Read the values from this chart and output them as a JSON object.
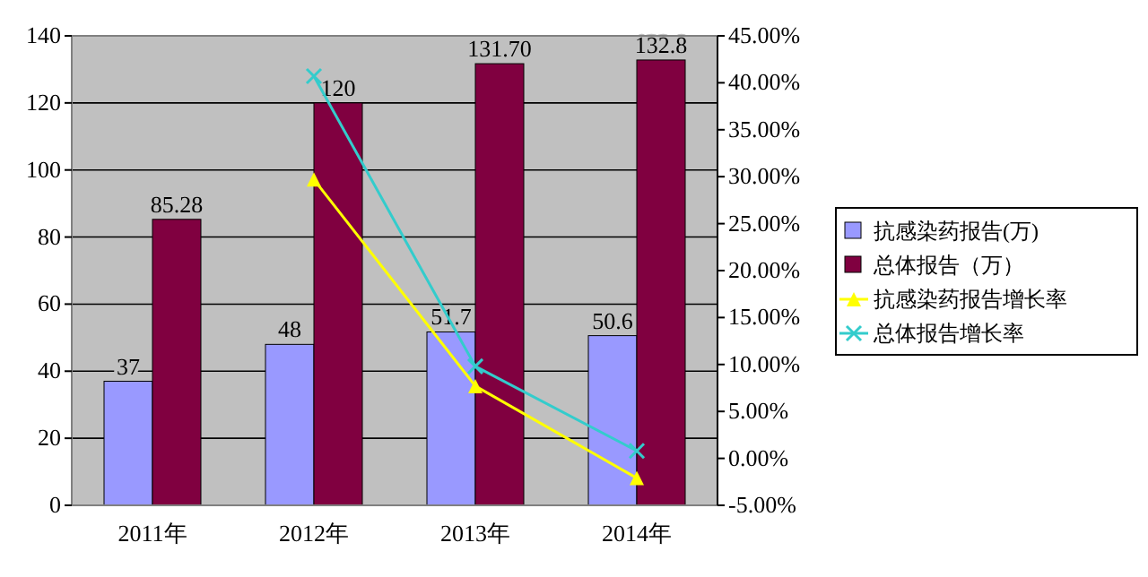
{
  "chart_data": {
    "type": "bar",
    "categories": [
      "2011年",
      "2012年",
      "2013年",
      "2014年"
    ],
    "series": [
      {
        "name": "抗感染药报告(万)",
        "color": "#9999ff",
        "values": [
          37,
          48,
          51.7,
          50.6
        ],
        "value_labels": [
          "37",
          "48",
          "51.7",
          "50.6"
        ]
      },
      {
        "name": "总体报告（万）",
        "color": "#800040",
        "values": [
          85.28,
          120,
          131.7,
          132.8
        ],
        "value_labels": [
          "85.28",
          "120",
          "131.70",
          "132.8"
        ]
      },
      {
        "name": "抗感染药报告增长率",
        "type": "line",
        "axis": "y2",
        "color": "#ffff00",
        "marker": "triangle",
        "values": [
          null,
          29.7,
          7.7,
          -2.1
        ]
      },
      {
        "name": "总体报告增长率",
        "type": "line",
        "axis": "y2",
        "color": "#33cccc",
        "marker": "cross",
        "values": [
          null,
          40.7,
          9.8,
          0.8
        ]
      }
    ],
    "ylim": [
      0,
      140
    ],
    "yticks": [
      0,
      20,
      40,
      60,
      80,
      100,
      120,
      140
    ],
    "y2lim": [
      -5,
      45
    ],
    "y2ticks": [
      {
        "value": -5,
        "label": "-5.00%"
      },
      {
        "value": 0,
        "label": "0.00%"
      },
      {
        "value": 5,
        "label": "5.00%"
      },
      {
        "value": 10,
        "label": "10.00%"
      },
      {
        "value": 15,
        "label": "15.00%"
      },
      {
        "value": 20,
        "label": "20.00%"
      },
      {
        "value": 25,
        "label": "25.00%"
      },
      {
        "value": 30,
        "label": "30.00%"
      },
      {
        "value": 35,
        "label": "35.00%"
      },
      {
        "value": 40,
        "label": "40.00%"
      },
      {
        "value": 45,
        "label": "45.00%"
      }
    ],
    "grid": "y",
    "legend": "right"
  }
}
